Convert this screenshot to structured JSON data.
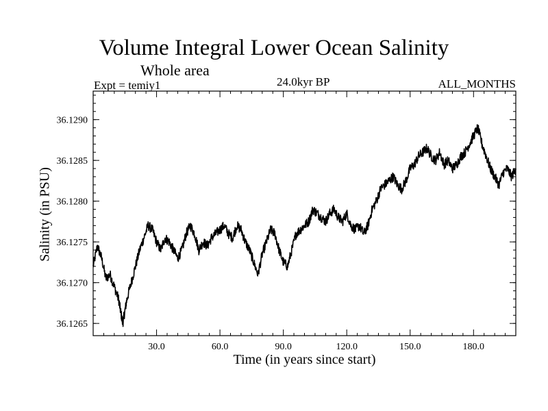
{
  "chart_data": {
    "type": "line",
    "title": "Volume Integral Lower Ocean Salinity",
    "subtitle": "Whole area",
    "experiment_label": "Expt = temiy1",
    "period_label": "24.0kyr BP",
    "months_label": "ALL_MONTHS",
    "xlabel": "Time (in years since start)",
    "ylabel": "Salinity (in PSU)",
    "xlim": [
      0,
      200
    ],
    "ylim": [
      36.12635,
      36.12935
    ],
    "xticks": [
      30,
      60,
      90,
      120,
      150,
      180
    ],
    "xtick_labels": [
      "30.0",
      "60.0",
      "90.0",
      "120.0",
      "150.0",
      "180.0"
    ],
    "yticks": [
      36.1265,
      36.127,
      36.1275,
      36.128,
      36.1285,
      36.129
    ],
    "ytick_labels": [
      "36.1265",
      "36.1270",
      "36.1275",
      "36.1280",
      "36.1285",
      "36.1290"
    ],
    "line_color": "#000000",
    "series": [
      {
        "name": "Salinity",
        "x": [
          0,
          2,
          4,
          6,
          8,
          10,
          12,
          13,
          14,
          15,
          16,
          18,
          20,
          22,
          24,
          26,
          28,
          30,
          32,
          34,
          36,
          38,
          40,
          42,
          44,
          46,
          48,
          50,
          52,
          54,
          56,
          58,
          60,
          62,
          64,
          66,
          68,
          70,
          72,
          74,
          76,
          78,
          80,
          82,
          84,
          86,
          88,
          90,
          92,
          94,
          96,
          98,
          100,
          102,
          104,
          106,
          108,
          110,
          112,
          114,
          116,
          118,
          120,
          122,
          124,
          126,
          128,
          130,
          132,
          134,
          136,
          138,
          140,
          142,
          144,
          146,
          148,
          150,
          152,
          154,
          156,
          158,
          160,
          162,
          164,
          166,
          168,
          170,
          172,
          174,
          176,
          178,
          180,
          182,
          184,
          186,
          188,
          190,
          192,
          194,
          196,
          198,
          200
        ],
        "values": [
          36.1272,
          36.12745,
          36.1273,
          36.12705,
          36.1271,
          36.12695,
          36.1268,
          36.12665,
          36.1265,
          36.12665,
          36.1268,
          36.127,
          36.1272,
          36.1274,
          36.12755,
          36.1277,
          36.12765,
          36.1275,
          36.1274,
          36.12755,
          36.1275,
          36.1274,
          36.1273,
          36.1274,
          36.1276,
          36.1277,
          36.1276,
          36.1274,
          36.1275,
          36.12745,
          36.12755,
          36.1276,
          36.12765,
          36.1277,
          36.1276,
          36.12755,
          36.1277,
          36.12765,
          36.1275,
          36.1274,
          36.12725,
          36.1271,
          36.12735,
          36.1275,
          36.12765,
          36.1276,
          36.1274,
          36.12725,
          36.1272,
          36.1274,
          36.1276,
          36.12765,
          36.1277,
          36.12775,
          36.1279,
          36.12785,
          36.1278,
          36.12775,
          36.12785,
          36.1279,
          36.1278,
          36.12775,
          36.12785,
          36.1277,
          36.12765,
          36.1277,
          36.1276,
          36.1277,
          36.1279,
          36.128,
          36.12815,
          36.1282,
          36.12825,
          36.1283,
          36.1282,
          36.12815,
          36.12825,
          36.1284,
          36.12845,
          36.12855,
          36.1286,
          36.12865,
          36.12855,
          36.1285,
          36.1286,
          36.12845,
          36.1285,
          36.1284,
          36.12845,
          36.12855,
          36.1286,
          36.1287,
          36.1288,
          36.1289,
          36.1287,
          36.12855,
          36.1284,
          36.1283,
          36.1282,
          36.12835,
          36.1284,
          36.1283,
          36.1284
        ]
      }
    ]
  }
}
